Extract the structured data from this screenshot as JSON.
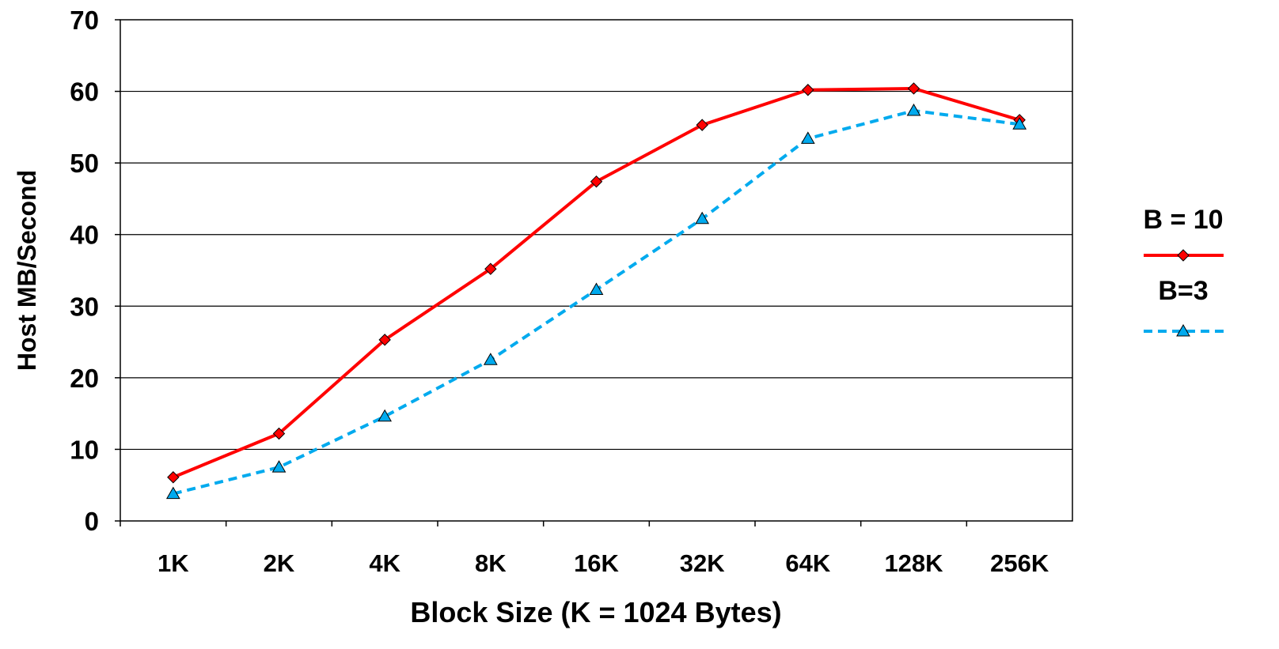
{
  "chart_data": {
    "type": "line",
    "title": "",
    "xlabel": "Block Size (K = 1024 Bytes)",
    "ylabel": "Host MB/Second",
    "categories": [
      "1K",
      "2K",
      "4K",
      "8K",
      "16K",
      "32K",
      "64K",
      "128K",
      "256K"
    ],
    "ylim": [
      0,
      70
    ],
    "yticks": [
      0,
      10,
      20,
      30,
      40,
      50,
      60,
      70
    ],
    "grid": true,
    "legend_position": "right",
    "series": [
      {
        "name": "B = 10",
        "values": [
          6.1,
          12.2,
          25.3,
          35.2,
          47.4,
          55.3,
          60.2,
          60.4,
          56.0
        ],
        "color": "#ff0000",
        "marker": "diamond",
        "line_style": "solid"
      },
      {
        "name": "B=3",
        "values": [
          3.8,
          7.5,
          14.6,
          22.5,
          32.3,
          42.2,
          53.4,
          57.3,
          55.4
        ],
        "color": "#00aaee",
        "marker": "triangle",
        "line_style": "dashed"
      }
    ]
  }
}
